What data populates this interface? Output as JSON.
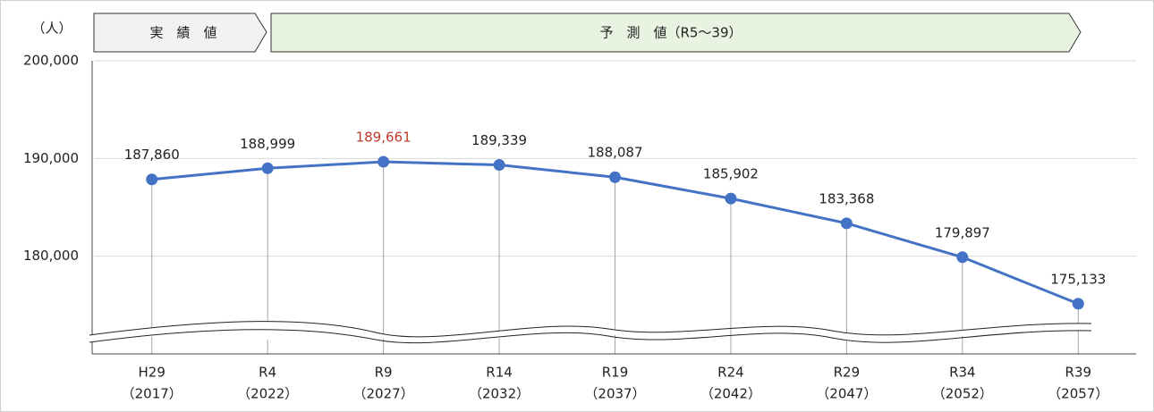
{
  "chart_data": {
    "type": "line",
    "unit_label": "（人）",
    "banners": [
      "実　績　値",
      "予　測　値（R5～39）"
    ],
    "categories": [
      "H29",
      "R4",
      "R9",
      "R14",
      "R19",
      "R24",
      "R29",
      "R34",
      "R39"
    ],
    "category_years": [
      "（2017）",
      "（2022）",
      "（2027）",
      "（2032）",
      "（2037）",
      "（2042）",
      "（2047）",
      "（2052）",
      "（2057）"
    ],
    "values": [
      187860,
      188999,
      189661,
      189339,
      188087,
      185902,
      183368,
      179897,
      175133
    ],
    "value_labels": [
      "187,860",
      "188,999",
      "189,661",
      "189,339",
      "188,087",
      "185,902",
      "183,368",
      "179,897",
      "175,133"
    ],
    "value_label_colors": [
      "#222222",
      "#222222",
      "#c0392b",
      "#222222",
      "#222222",
      "#222222",
      "#222222",
      "#222222",
      "#222222"
    ],
    "color": "#4472c4",
    "ylim": [
      170000,
      200000
    ],
    "yticks": [
      {
        "value": 180000,
        "label": "180,000"
      },
      {
        "value": 190000,
        "label": "190,000"
      },
      {
        "value": 200000,
        "label": "200,000"
      }
    ],
    "grid": true
  }
}
